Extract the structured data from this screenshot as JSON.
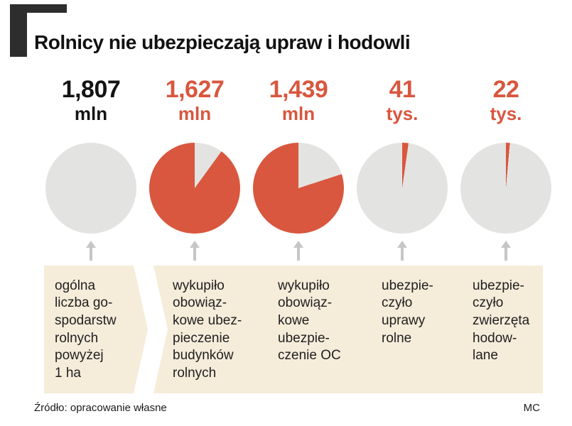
{
  "title": "Rolnicy nie ubezpieczają upraw i hodowli",
  "footer": {
    "source": "Źródło: opracowanie własne",
    "credit": "MC"
  },
  "colors": {
    "red": "#d8573e",
    "pie_gray": "#e3e3e2",
    "beige": "#f5ecda",
    "arrow_gray": "#c6c6c6",
    "number_black": "#141414"
  },
  "chart_data": {
    "type": "pie",
    "title": "Rolnicy nie ubezpieczają upraw i hodowli",
    "total_reference": "1,807 mln gospodarstw",
    "items": [
      {
        "value": "1,807",
        "unit": "mln",
        "number_color": "#141414",
        "share_pct": 100,
        "red_start_deg": 0,
        "red_end_deg": 0,
        "label": "ogólna\nliczba go-\nspodarstw\nrolnych\npowyżej\n1 ha"
      },
      {
        "value": "1,627",
        "unit": "mln",
        "number_color": "#d8573e",
        "share_pct": 90,
        "red_start_deg": 36,
        "red_end_deg": 360,
        "label": "wykupiło\nobowiąz-\nkowe ubez-\npieczenie\nbudynków\nrolnych"
      },
      {
        "value": "1,439",
        "unit": "mln",
        "number_color": "#d8573e",
        "share_pct": 80,
        "red_start_deg": 72,
        "red_end_deg": 360,
        "label": "wykupiło\nobowiąz-\nkowe\nubezpie-\nczenie OC"
      },
      {
        "value": "41",
        "unit": "tys.",
        "number_color": "#d8573e",
        "share_pct": 2.3,
        "red_start_deg": 0,
        "red_end_deg": 8,
        "label": "ubezpie-\nczyło\nuprawy\nrolne"
      },
      {
        "value": "22",
        "unit": "tys.",
        "number_color": "#d8573e",
        "share_pct": 1.2,
        "red_start_deg": 0,
        "red_end_deg": 5,
        "label": "ubezpie-\nczyło\nzwierzęta\nhodow-\nlane"
      }
    ]
  }
}
